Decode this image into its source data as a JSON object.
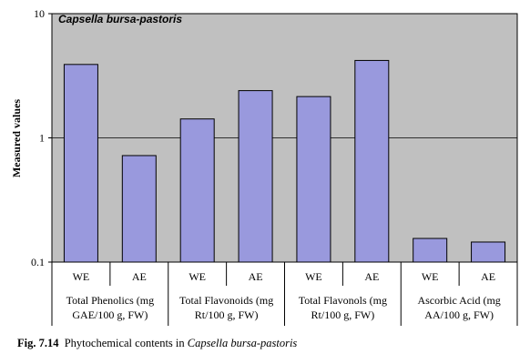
{
  "chart_data": {
    "type": "bar",
    "title": "Capsella bursa-pastoris",
    "ylabel": "Measured values",
    "yscale": "log",
    "ylim": [
      0.1,
      10
    ],
    "yticks": [
      0.1,
      1,
      10
    ],
    "ytick_labels": [
      "0.1",
      "1",
      "10"
    ],
    "grid": true,
    "bar_color": "#9999dd",
    "background_color": "#c0c0c0",
    "categories": [
      "WE",
      "AE",
      "WE",
      "AE",
      "WE",
      "AE",
      "WE",
      "AE"
    ],
    "values": [
      3.9,
      0.72,
      1.42,
      2.4,
      2.15,
      4.2,
      0.155,
      0.145
    ],
    "groups": [
      {
        "label_line1": "Total Phenolics (mg",
        "label_line2": "GAE/100 g, FW)"
      },
      {
        "label_line1": "Total Flavonoids (mg",
        "label_line2": "Rt/100 g, FW)"
      },
      {
        "label_line1": "Total Flavonols (mg",
        "label_line2": "Rt/100 g, FW)"
      },
      {
        "label_line1": "Ascorbic Acid (mg",
        "label_line2": "AA/100 g, FW)"
      }
    ]
  },
  "caption": {
    "fig": "Fig. 7.14",
    "text": "Phytochemical contents in",
    "species": "Capsella bursa-pastoris"
  }
}
